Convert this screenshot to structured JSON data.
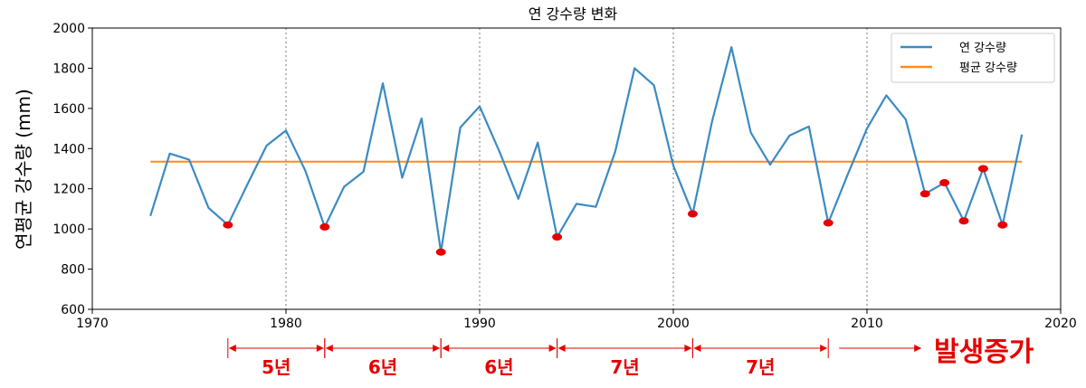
{
  "chart_data": {
    "type": "line",
    "title": "연 강수량 변화",
    "xlabel": "",
    "ylabel": "연평균 강수량 (mm)",
    "xlim": [
      1970,
      2020
    ],
    "ylim": [
      600,
      2000
    ],
    "xticks": [
      1970,
      1980,
      1990,
      2000,
      2010,
      2020
    ],
    "yticks": [
      600,
      800,
      1000,
      1200,
      1400,
      1600,
      1800,
      2000
    ],
    "vlines": [
      1980,
      1990,
      2000,
      2010
    ],
    "legend_position": "top-right",
    "colors": {
      "series": "#3b8bc2",
      "average": "#ff8c1a",
      "marker": "#e60000",
      "annotation": "#e60000"
    },
    "series": [
      {
        "name": "연 강수량",
        "x": [
          1973,
          1974,
          1975,
          1976,
          1977,
          1978,
          1979,
          1980,
          1981,
          1982,
          1983,
          1984,
          1985,
          1986,
          1987,
          1988,
          1989,
          1990,
          1991,
          1992,
          1993,
          1994,
          1995,
          1996,
          1997,
          1998,
          1999,
          2000,
          2001,
          2002,
          2003,
          2004,
          2005,
          2006,
          2007,
          2008,
          2009,
          2010,
          2011,
          2012,
          2013,
          2014,
          2015,
          2016,
          2017,
          2018
        ],
        "values": [
          1065,
          1375,
          1345,
          1105,
          1020,
          1220,
          1415,
          1490,
          1290,
          1010,
          1210,
          1285,
          1725,
          1255,
          1550,
          885,
          1505,
          1610,
          1390,
          1150,
          1430,
          960,
          1125,
          1110,
          1385,
          1800,
          1715,
          1315,
          1075,
          1535,
          1905,
          1480,
          1320,
          1465,
          1510,
          1030,
          1270,
          1500,
          1665,
          1545,
          1175,
          1230,
          1040,
          1300,
          1020,
          1470
        ]
      },
      {
        "name": "평균 강수량",
        "x": [
          1973,
          2018
        ],
        "values": [
          1335,
          1335
        ]
      }
    ],
    "highlighted_points": {
      "x": [
        1977,
        1982,
        1988,
        1994,
        2001,
        2008,
        2013,
        2014,
        2015,
        2016,
        2017
      ],
      "values": [
        1020,
        1010,
        885,
        960,
        1075,
        1030,
        1175,
        1230,
        1040,
        1300,
        1020
      ]
    },
    "annotations": [
      {
        "label": "5년",
        "from": 1977,
        "to": 1982
      },
      {
        "label": "6년",
        "from": 1982,
        "to": 1988
      },
      {
        "label": "6년",
        "from": 1988,
        "to": 1994
      },
      {
        "label": "7년",
        "from": 1994,
        "to": 2001
      },
      {
        "label": "7년",
        "from": 2001,
        "to": 2008
      }
    ],
    "trend_annotation": {
      "label": "발생증가",
      "from": 2008,
      "to": 2013
    }
  }
}
